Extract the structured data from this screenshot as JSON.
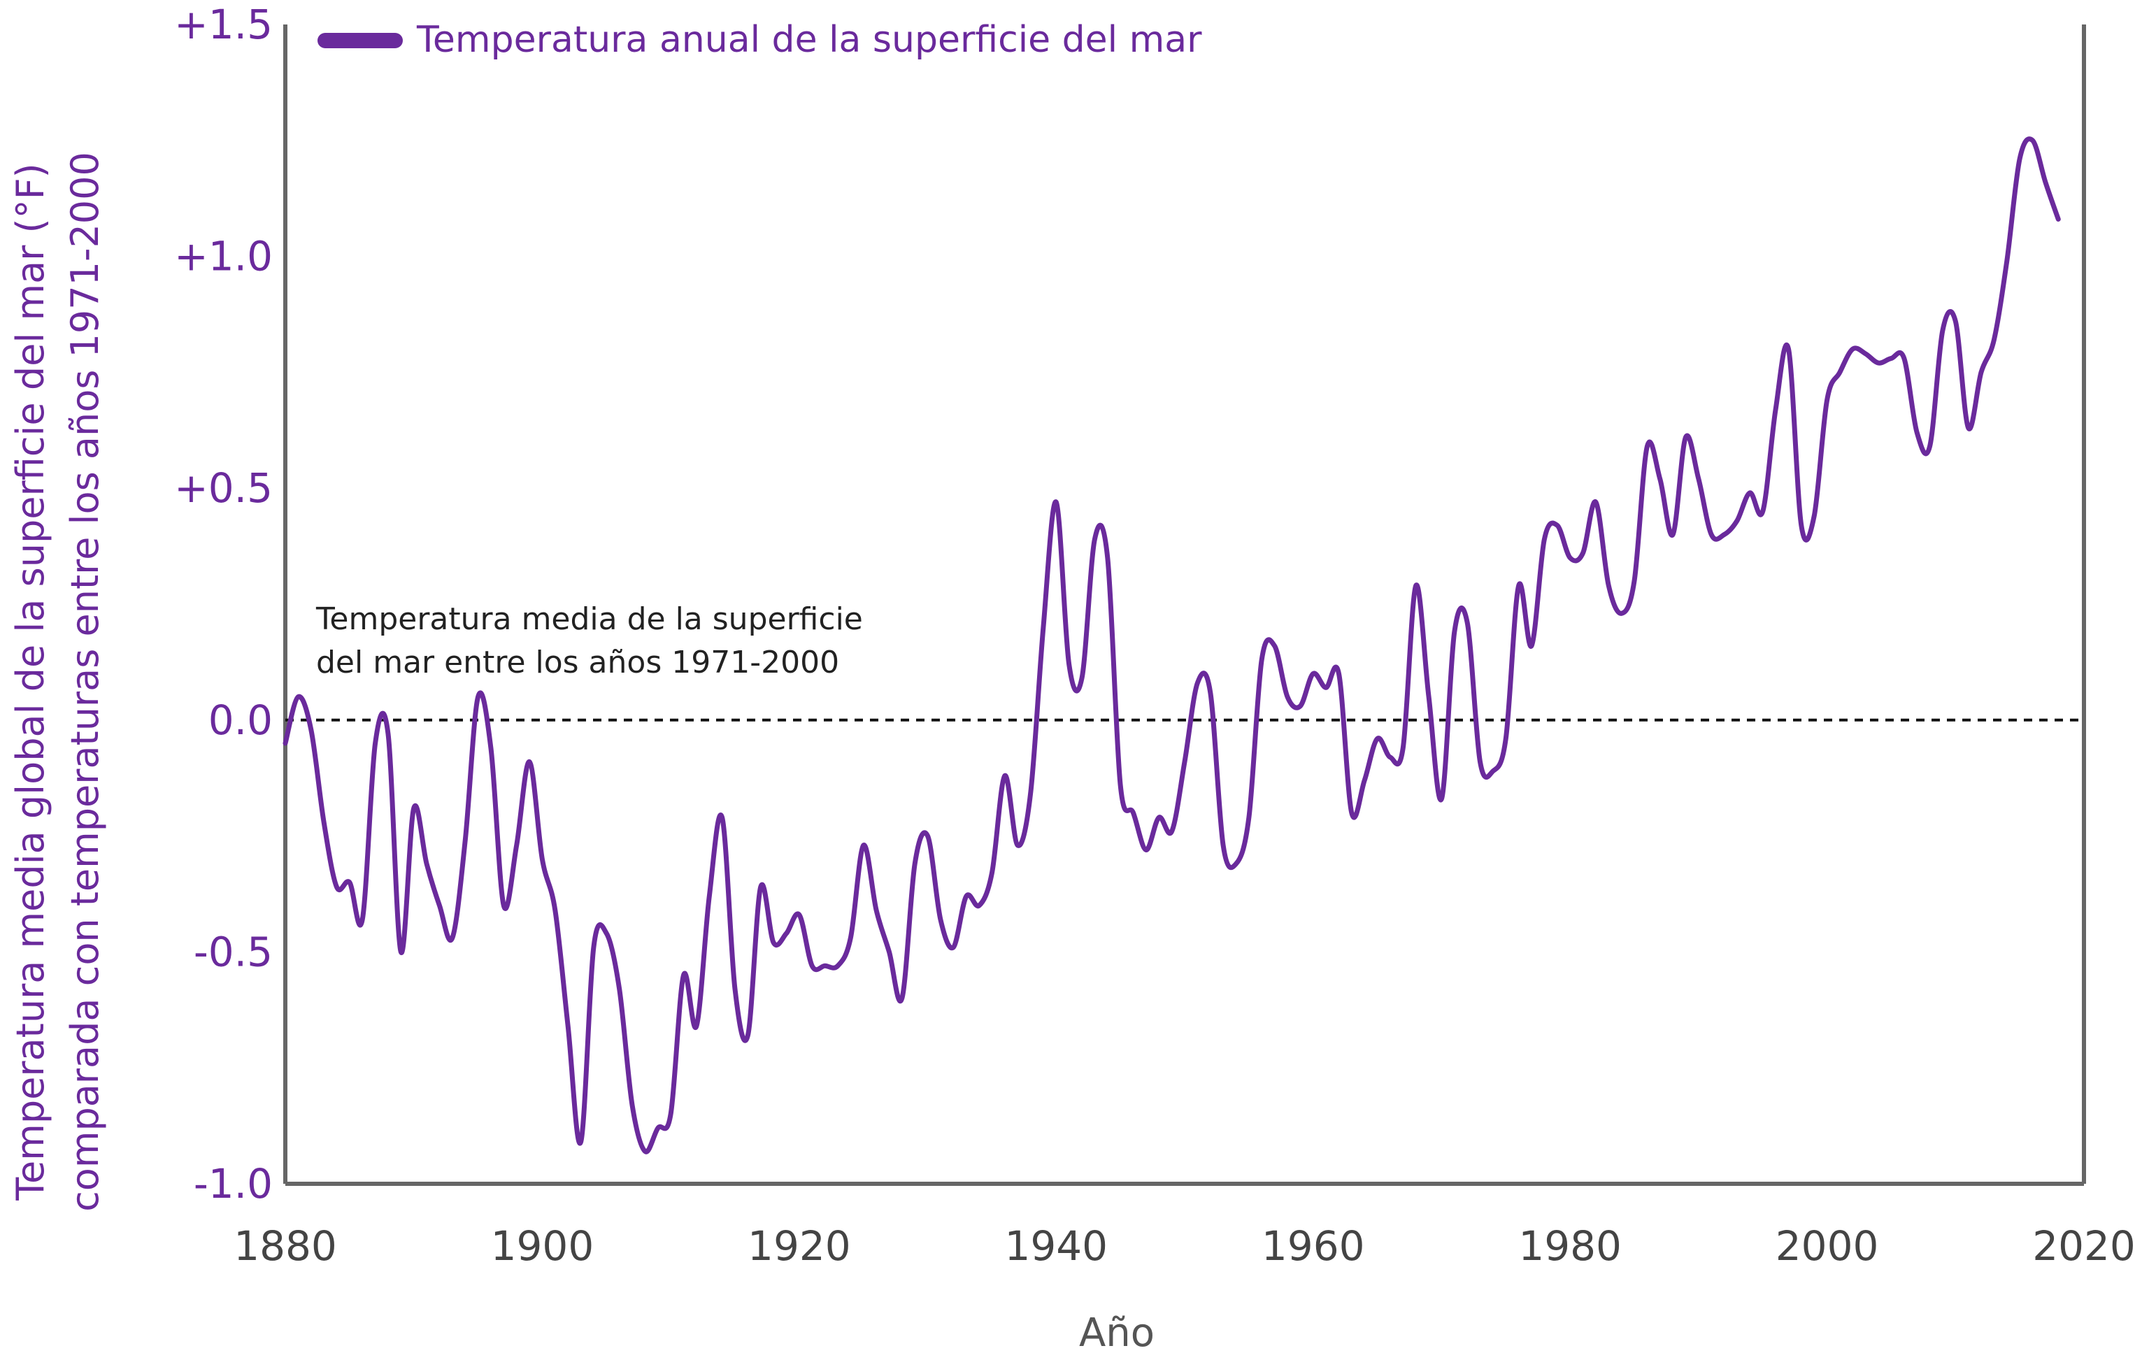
{
  "chart_data": {
    "type": "line",
    "title": "",
    "xlabel": "Año",
    "ylabel": [
      "Temperatura media global de la superficie del mar (°F)",
      "comparada con temperaturas entre los años 1971-2000"
    ],
    "xlim": [
      1880,
      2020
    ],
    "ylim": [
      -1.0,
      1.5
    ],
    "x_ticks": [
      "1880",
      "1900",
      "1920",
      "1940",
      "1960",
      "1980",
      "2000",
      "2020"
    ],
    "y_ticks": [
      "+1.5",
      "+1.0",
      "+0.5",
      "0.0",
      "-0.5",
      "-1.0"
    ],
    "y_tick_values": [
      1.5,
      1.0,
      0.5,
      0.0,
      -0.5,
      -1.0
    ],
    "grid": false,
    "legend_position": "top-left",
    "reference_line": {
      "value": 0.0,
      "style": "dashed",
      "label_line1": "Temperatura media de la superficie",
      "label_line2": "del mar entre los años 1971-2000"
    },
    "series": [
      {
        "name": "Temperatura anual de la superficie del mar",
        "color": "#6a2a9c",
        "x": [
          1880,
          1881,
          1882,
          1883,
          1884,
          1885,
          1886,
          1887,
          1888,
          1889,
          1890,
          1891,
          1892,
          1893,
          1894,
          1895,
          1896,
          1897,
          1898,
          1899,
          1900,
          1901,
          1902,
          1903,
          1904,
          1905,
          1906,
          1907,
          1908,
          1909,
          1910,
          1911,
          1912,
          1913,
          1914,
          1915,
          1916,
          1917,
          1918,
          1919,
          1920,
          1921,
          1922,
          1923,
          1924,
          1925,
          1926,
          1927,
          1928,
          1929,
          1930,
          1931,
          1932,
          1933,
          1934,
          1935,
          1936,
          1937,
          1938,
          1939,
          1940,
          1941,
          1942,
          1943,
          1944,
          1945,
          1946,
          1947,
          1948,
          1949,
          1950,
          1951,
          1952,
          1953,
          1954,
          1955,
          1956,
          1957,
          1958,
          1959,
          1960,
          1961,
          1962,
          1963,
          1964,
          1965,
          1966,
          1967,
          1968,
          1969,
          1970,
          1971,
          1972,
          1973,
          1974,
          1975,
          1976,
          1977,
          1978,
          1979,
          1980,
          1981,
          1982,
          1983,
          1984,
          1985,
          1986,
          1987,
          1988,
          1989,
          1990,
          1991,
          1992,
          1993,
          1994,
          1995,
          1996,
          1997,
          1998,
          1999,
          2000,
          2001,
          2002,
          2003,
          2004,
          2005,
          2006,
          2007,
          2008,
          2009,
          2010,
          2011,
          2012,
          2013,
          2014,
          2015,
          2016,
          2017,
          2018
        ],
        "values": [
          -0.05,
          0.05,
          -0.02,
          -0.22,
          -0.36,
          -0.35,
          -0.43,
          -0.05,
          -0.03,
          -0.5,
          -0.19,
          -0.31,
          -0.4,
          -0.47,
          -0.26,
          0.05,
          -0.06,
          -0.4,
          -0.27,
          -0.09,
          -0.3,
          -0.41,
          -0.66,
          -0.91,
          -0.49,
          -0.46,
          -0.58,
          -0.83,
          -0.93,
          -0.88,
          -0.85,
          -0.55,
          -0.66,
          -0.38,
          -0.21,
          -0.58,
          -0.68,
          -0.36,
          -0.48,
          -0.46,
          -0.42,
          -0.53,
          -0.53,
          -0.53,
          -0.47,
          -0.27,
          -0.41,
          -0.5,
          -0.6,
          -0.31,
          -0.25,
          -0.43,
          -0.49,
          -0.38,
          -0.4,
          -0.33,
          -0.12,
          -0.27,
          -0.16,
          0.2,
          0.47,
          0.12,
          0.09,
          0.39,
          0.35,
          -0.14,
          -0.2,
          -0.28,
          -0.21,
          -0.24,
          -0.09,
          0.08,
          0.06,
          -0.27,
          -0.31,
          -0.21,
          0.13,
          0.16,
          0.05,
          0.03,
          0.1,
          0.07,
          0.1,
          -0.2,
          -0.13,
          -0.04,
          -0.08,
          -0.06,
          0.29,
          0.05,
          -0.17,
          0.19,
          0.21,
          -0.09,
          -0.11,
          -0.04,
          0.29,
          0.16,
          0.39,
          0.42,
          0.35,
          0.36,
          0.47,
          0.29,
          0.23,
          0.3,
          0.59,
          0.52,
          0.4,
          0.61,
          0.52,
          0.4,
          0.4,
          0.43,
          0.49,
          0.45,
          0.67,
          0.8,
          0.42,
          0.44,
          0.69,
          0.75,
          0.8,
          0.79,
          0.77,
          0.78,
          0.78,
          0.62,
          0.59,
          0.84,
          0.86,
          0.63,
          0.75,
          0.82,
          0.99,
          1.21,
          1.25,
          1.16,
          1.08
        ]
      }
    ]
  },
  "colors": {
    "series": "#6a2a9c",
    "axis": "#666666",
    "reference_line": "#111111"
  }
}
